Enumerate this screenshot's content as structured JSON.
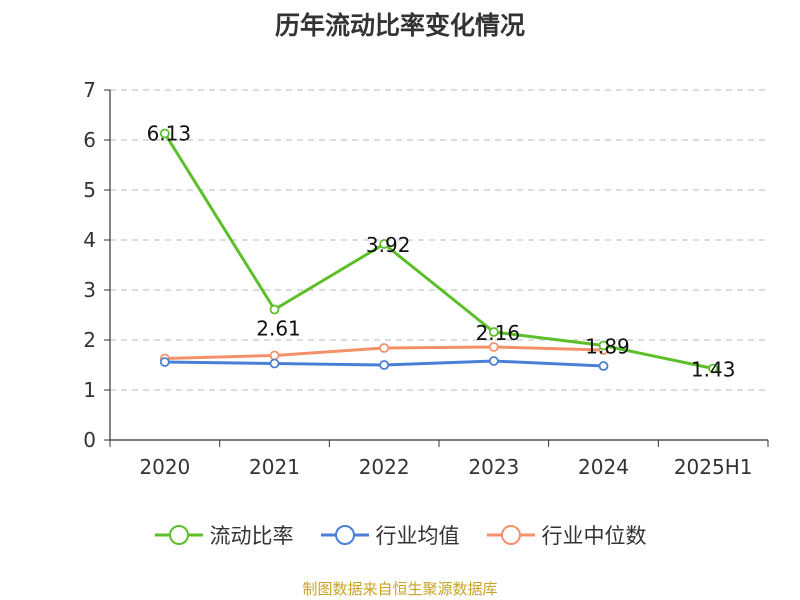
{
  "title": "历年流动比率变化情况",
  "source": "制图数据来自恒生聚源数据库",
  "colors": {
    "流动比率": "#5cbf2a",
    "行业均值": "#4a7fd8",
    "行业中位数": "#f4916a"
  },
  "chart_data": {
    "type": "line",
    "title": "历年流动比率变化情况",
    "categories": [
      "2020",
      "2021",
      "2022",
      "2023",
      "2024",
      "2025H1"
    ],
    "yticks": [
      "0",
      "1",
      "2",
      "3",
      "4",
      "5",
      "6",
      "7"
    ],
    "ylim": [
      0,
      7
    ],
    "grid": true,
    "legend_position": "bottom",
    "series": [
      {
        "name": "流动比率",
        "values": [
          6.13,
          2.61,
          3.92,
          2.16,
          1.89,
          1.43
        ],
        "labels": [
          "6.13",
          "2.61",
          "3.92",
          "2.16",
          "1.89",
          "1.43"
        ]
      },
      {
        "name": "行业均值",
        "values": [
          1.56,
          1.53,
          1.5,
          1.58,
          1.48,
          null
        ]
      },
      {
        "name": "行业中位数",
        "values": [
          1.63,
          1.69,
          1.84,
          1.86,
          1.8,
          null
        ]
      }
    ]
  }
}
